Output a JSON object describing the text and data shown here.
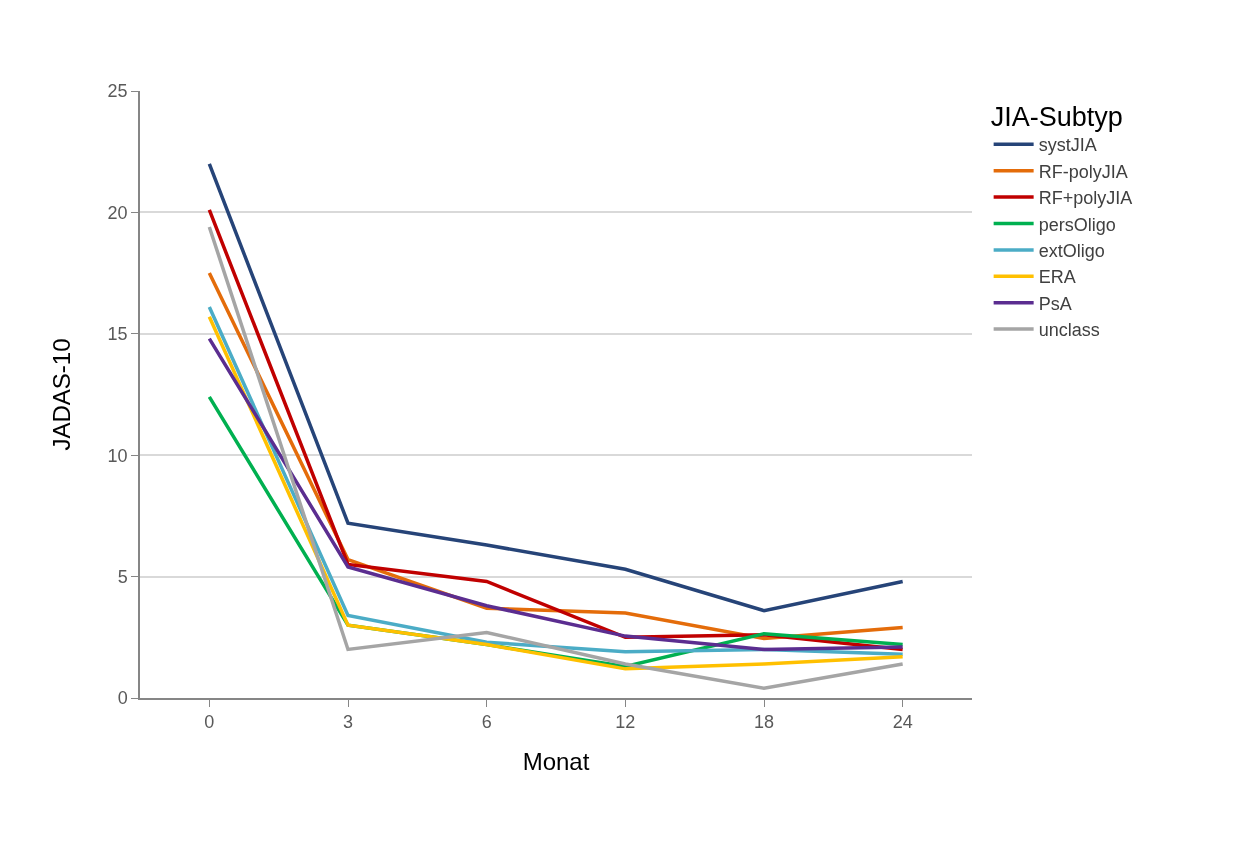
{
  "chart_data": {
    "type": "line",
    "xlabel": "Monat",
    "ylabel": "JADAS-10",
    "legend_title": "JIA-Subtyp",
    "categories": [
      "0",
      "3",
      "6",
      "12",
      "18",
      "24"
    ],
    "ylim": [
      0,
      25
    ],
    "yticks": [
      0,
      5,
      10,
      15,
      20,
      25
    ],
    "grid": "y",
    "legend": "top right",
    "marker": "none",
    "line_style": "solid",
    "series": [
      {
        "name": "systJIA",
        "color": "#264478",
        "values": [
          22.0,
          7.2,
          6.3,
          5.3,
          3.6,
          4.8
        ]
      },
      {
        "name": "RF-polyJIA",
        "color": "#e46c0a",
        "values": [
          17.5,
          5.7,
          3.7,
          3.5,
          2.45,
          2.9
        ]
      },
      {
        "name": "RF+polyJIA",
        "color": "#c00000",
        "values": [
          20.1,
          5.5,
          4.8,
          2.5,
          2.6,
          2.0
        ]
      },
      {
        "name": "persOligo",
        "color": "#00b050",
        "values": [
          12.4,
          3.0,
          2.2,
          1.3,
          2.65,
          2.2
        ]
      },
      {
        "name": "extOligo",
        "color": "#4bacc6",
        "values": [
          16.1,
          3.4,
          2.3,
          1.9,
          2.0,
          1.8
        ]
      },
      {
        "name": "ERA",
        "color": "#ffc000",
        "values": [
          15.7,
          3.0,
          2.2,
          1.2,
          1.4,
          1.7
        ]
      },
      {
        "name": "PsA",
        "color": "#5b2d90",
        "values": [
          14.8,
          5.4,
          3.8,
          2.55,
          2.0,
          2.1
        ]
      },
      {
        "name": "unclass",
        "color": "#a5a5a5",
        "values": [
          19.4,
          2.0,
          2.7,
          1.4,
          0.4,
          1.4
        ]
      }
    ]
  }
}
